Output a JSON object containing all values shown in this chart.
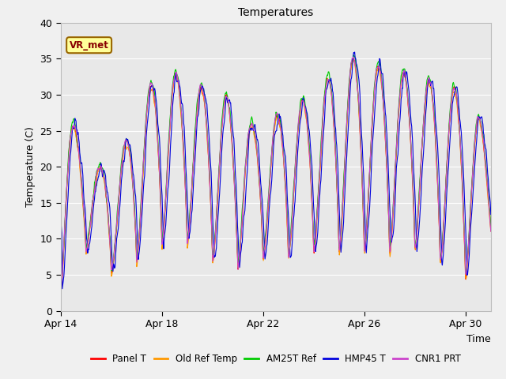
{
  "title": "Temperatures",
  "xlabel": "Time",
  "ylabel": "Temperature (C)",
  "ylim": [
    0,
    40
  ],
  "n_days": 17,
  "x_ticks_labels": [
    "Apr 14",
    "Apr 18",
    "Apr 22",
    "Apr 26",
    "Apr 30"
  ],
  "x_ticks_pos": [
    0,
    4,
    8,
    12,
    16
  ],
  "yticks": [
    0,
    5,
    10,
    15,
    20,
    25,
    30,
    35,
    40
  ],
  "plot_bg_color": "#e8e8e8",
  "fig_bg_color": "#f0f0f0",
  "grid_color": "#ffffff",
  "series_colors": {
    "Panel T": "#ff0000",
    "Old Ref Temp": "#ff9900",
    "AM25T Ref": "#00cc00",
    "HMP45 T": "#0000dd",
    "CNR1 PRT": "#cc44cc"
  },
  "legend_label": "VR_met",
  "legend_box_facecolor": "#ffff99",
  "legend_box_edgecolor": "#996600",
  "title_fontsize": 10,
  "axis_label_fontsize": 9,
  "tick_fontsize": 9
}
